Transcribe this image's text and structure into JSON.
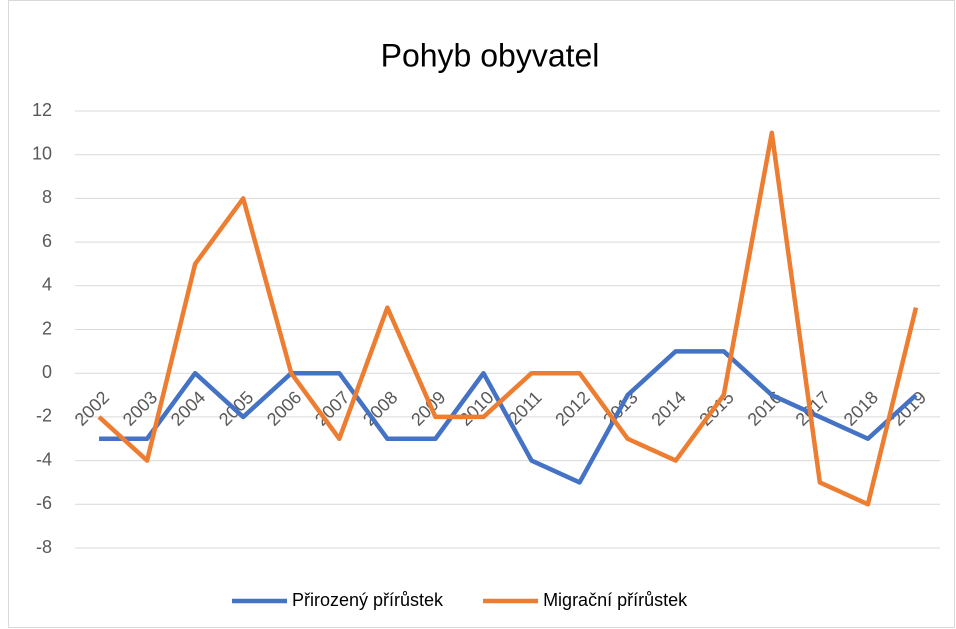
{
  "chart_data": {
    "type": "line",
    "title": "Pohyb obyvatel",
    "categories": [
      "2002",
      "2003",
      "2004",
      "2005",
      "2006",
      "2007",
      "2008",
      "2009",
      "2010",
      "2011",
      "2012",
      "2013",
      "2014",
      "2015",
      "2016",
      "2017",
      "2018",
      "2019"
    ],
    "series": [
      {
        "name": "Přirozený přírůstek",
        "color": "#4472c4",
        "values": [
          -3,
          -3,
          0,
          -2,
          0,
          0,
          -3,
          -3,
          0,
          -4,
          -5,
          -1,
          1,
          1,
          -1,
          -2,
          -3,
          -1
        ]
      },
      {
        "name": "Migrační přírůstek",
        "color": "#ed7d31",
        "values": [
          -2,
          -4,
          5,
          8,
          0,
          -3,
          3,
          -2,
          -2,
          0,
          0,
          -3,
          -4,
          -1,
          11,
          -5,
          -6,
          3
        ]
      }
    ],
    "ylim": [
      -8,
      12
    ],
    "yticks": [
      -8,
      -6,
      -4,
      -2,
      0,
      2,
      4,
      6,
      8,
      10,
      12
    ],
    "grid": true,
    "legend": "bottom"
  }
}
